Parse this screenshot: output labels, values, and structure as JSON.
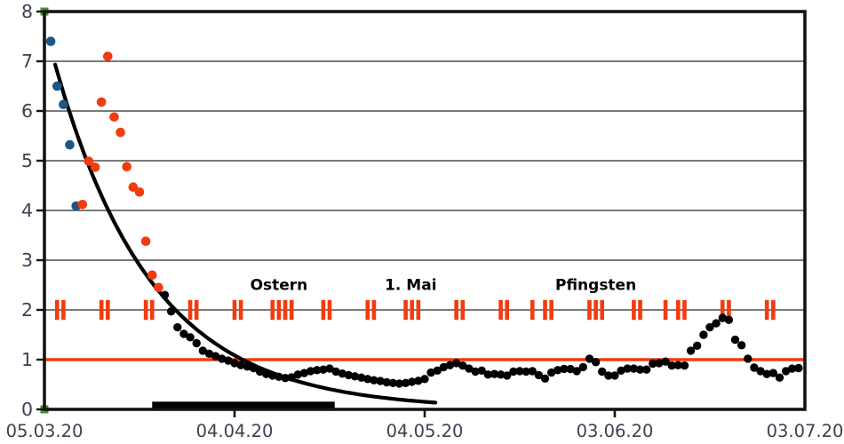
{
  "chart_data": {
    "type": "scatter",
    "title": "",
    "x_axis": {
      "unit": "date",
      "days_total": 120,
      "ticks": [
        {
          "day": 0,
          "label": "05.03.20"
        },
        {
          "day": 30,
          "label": "04.04.20"
        },
        {
          "day": 60,
          "label": "04.05.20"
        },
        {
          "day": 90,
          "label": "03.06.20"
        },
        {
          "day": 120,
          "label": "03.07.20"
        }
      ]
    },
    "y_axis": {
      "min": 0,
      "max": 8,
      "tick_values": [
        0,
        1,
        2,
        3,
        4,
        5,
        6,
        7,
        8
      ],
      "tick_labels": [
        "0",
        "1",
        "2",
        "3",
        "4",
        "5",
        "6",
        "7",
        "8"
      ],
      "gridline_values": [
        1,
        2,
        3,
        4,
        5,
        6,
        7
      ]
    },
    "reference_line": {
      "value": 1
    },
    "series": [
      {
        "name": "blue-early-points",
        "color": "#1a5788",
        "radius": 5.3,
        "points": [
          [
            1,
            7.4
          ],
          [
            2,
            6.5
          ],
          [
            3,
            6.13
          ],
          [
            4,
            5.32
          ],
          [
            5,
            4.09
          ]
        ]
      },
      {
        "name": "orange-points",
        "color": "#f23b0e",
        "radius": 5.3,
        "points": [
          [
            6,
            4.12
          ],
          [
            7,
            4.99
          ],
          [
            8,
            4.87
          ],
          [
            9,
            6.18
          ],
          [
            10,
            7.1
          ],
          [
            11,
            5.88
          ],
          [
            12,
            5.57
          ],
          [
            13,
            4.88
          ],
          [
            14,
            4.47
          ],
          [
            15,
            4.37
          ],
          [
            16,
            3.38
          ],
          [
            17,
            2.7
          ],
          [
            18,
            2.45
          ]
        ]
      },
      {
        "name": "black-daily-points",
        "color": "#000000",
        "radius": 4.7,
        "points": [
          [
            19,
            2.3
          ],
          [
            20,
            1.97
          ],
          [
            21,
            1.65
          ],
          [
            22,
            1.52
          ],
          [
            23,
            1.45
          ],
          [
            24,
            1.33
          ],
          [
            25,
            1.18
          ],
          [
            26,
            1.12
          ],
          [
            27,
            1.07
          ],
          [
            28,
            1.02
          ],
          [
            29,
            0.98
          ],
          [
            30,
            0.93
          ],
          [
            31,
            0.89
          ],
          [
            32,
            0.86
          ],
          [
            33,
            0.83
          ],
          [
            34,
            0.76
          ],
          [
            35,
            0.71
          ],
          [
            36,
            0.68
          ],
          [
            37,
            0.655
          ],
          [
            38,
            0.63
          ],
          [
            39,
            0.645
          ],
          [
            40,
            0.7
          ],
          [
            41,
            0.73
          ],
          [
            42,
            0.77
          ],
          [
            43,
            0.79
          ],
          [
            44,
            0.8
          ],
          [
            45,
            0.82
          ],
          [
            46,
            0.76
          ],
          [
            47,
            0.72
          ],
          [
            48,
            0.69
          ],
          [
            49,
            0.665
          ],
          [
            50,
            0.64
          ],
          [
            51,
            0.61
          ],
          [
            52,
            0.585
          ],
          [
            53,
            0.57
          ],
          [
            54,
            0.545
          ],
          [
            55,
            0.53
          ],
          [
            56,
            0.52
          ],
          [
            57,
            0.53
          ],
          [
            58,
            0.555
          ],
          [
            59,
            0.575
          ],
          [
            60,
            0.61
          ],
          [
            61,
            0.74
          ],
          [
            62,
            0.78
          ],
          [
            63,
            0.85
          ],
          [
            64,
            0.89
          ],
          [
            65,
            0.93
          ],
          [
            66,
            0.88
          ],
          [
            67,
            0.82
          ],
          [
            68,
            0.76
          ],
          [
            69,
            0.78
          ],
          [
            70,
            0.7
          ],
          [
            71,
            0.71
          ],
          [
            72,
            0.7
          ],
          [
            73,
            0.68
          ],
          [
            74,
            0.76
          ],
          [
            75,
            0.77
          ],
          [
            76,
            0.76
          ],
          [
            77,
            0.77
          ],
          [
            78,
            0.69
          ],
          [
            79,
            0.62
          ],
          [
            80,
            0.74
          ],
          [
            81,
            0.79
          ],
          [
            82,
            0.815
          ],
          [
            83,
            0.81
          ],
          [
            84,
            0.77
          ],
          [
            85,
            0.85
          ],
          [
            86,
            1.02
          ],
          [
            87,
            0.95
          ],
          [
            88,
            0.76
          ],
          [
            89,
            0.68
          ],
          [
            90,
            0.68
          ],
          [
            91,
            0.78
          ],
          [
            92,
            0.82
          ],
          [
            93,
            0.82
          ],
          [
            94,
            0.8
          ],
          [
            95,
            0.8
          ],
          [
            96,
            0.92
          ],
          [
            97,
            0.93
          ],
          [
            98,
            0.96
          ],
          [
            99,
            0.88
          ],
          [
            100,
            0.89
          ],
          [
            101,
            0.88
          ],
          [
            102,
            1.18
          ],
          [
            103,
            1.28
          ],
          [
            104,
            1.5
          ],
          [
            105,
            1.65
          ],
          [
            106,
            1.73
          ],
          [
            107,
            1.84
          ],
          [
            108,
            1.8
          ],
          [
            109,
            1.4
          ],
          [
            110,
            1.29
          ],
          [
            111,
            1.02
          ],
          [
            112,
            0.84
          ],
          [
            113,
            0.77
          ],
          [
            114,
            0.71
          ],
          [
            115,
            0.73
          ],
          [
            116,
            0.64
          ],
          [
            117,
            0.77
          ],
          [
            118,
            0.82
          ],
          [
            119,
            0.83
          ]
        ]
      }
    ],
    "fit_curve": {
      "name": "exponential-fit",
      "value_at_day0": 7.75,
      "decay_per_day": 0.0655,
      "day_start": 1.7,
      "day_end": 62
    },
    "holiday_markers": {
      "value": 2,
      "bar_days": [
        2,
        3,
        9,
        10,
        16,
        17,
        23,
        24,
        30,
        31,
        36,
        37,
        38,
        39,
        44,
        45,
        51,
        52,
        57,
        58,
        59,
        65,
        66,
        72,
        73,
        77,
        79,
        80,
        86,
        87,
        88,
        93,
        94,
        98,
        100,
        101,
        107,
        108,
        114,
        115
      ]
    },
    "period_bar": {
      "start_day": 17,
      "end_day": 45.8,
      "value_top": 0.155,
      "value_bottom": 0.01
    },
    "anchor_markers": {
      "points": [
        [
          0,
          8
        ],
        [
          0,
          0
        ]
      ]
    },
    "annotations": [
      {
        "id": "ostern",
        "text": "Ostern",
        "day": 37.0,
        "baseline_value": 2.4
      },
      {
        "id": "erster-mai",
        "text": "1. Mai",
        "day": 57.8,
        "baseline_value": 2.4
      },
      {
        "id": "pfingsten",
        "text": "Pfingsten",
        "day": 87.0,
        "baseline_value": 2.4
      }
    ],
    "colors": {
      "accent_red": "#f23b0e",
      "blue": "#1a5788",
      "green": "#3f9420",
      "black": "#000000",
      "frame": "#141414",
      "gridline": "#2b2b2b",
      "label": "#3b4250",
      "background": "#ffffff"
    },
    "legend": "none",
    "grid": "horizontal-only"
  }
}
